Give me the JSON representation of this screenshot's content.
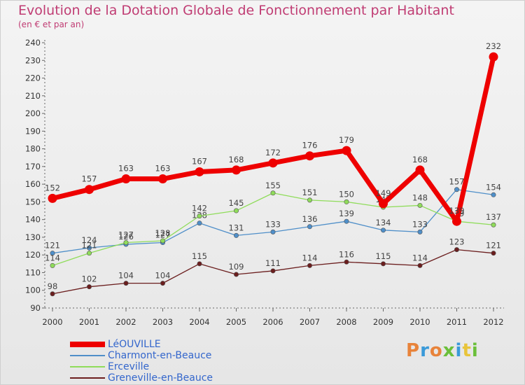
{
  "header": {
    "title": "Evolution de la Dotation Globale de Fonctionnement par Habitant",
    "subtitle": "(en € et par an)"
  },
  "logo": {
    "text": "Proxiti",
    "letters": [
      {
        "ch": "P",
        "color": "#e8833a"
      },
      {
        "ch": "r",
        "color": "#3a9ad9"
      },
      {
        "ch": "o",
        "color": "#e8833a"
      },
      {
        "ch": "x",
        "color": "#6bbf3a"
      },
      {
        "ch": "i",
        "color": "#3a9ad9"
      },
      {
        "ch": "t",
        "color": "#e8c43a"
      },
      {
        "ch": "i",
        "color": "#6bbf3a"
      }
    ]
  },
  "chart_data": {
    "type": "line",
    "title": "Evolution de la Dotation Globale de Fonctionnement par Habitant",
    "subtitle": "(en € et par an)",
    "x": [
      "2000",
      "2001",
      "2002",
      "2003",
      "2004",
      "2005",
      "2006",
      "2007",
      "2008",
      "2009",
      "2010",
      "2011",
      "2012"
    ],
    "ylim": [
      90,
      240
    ],
    "yticks": [
      90,
      100,
      110,
      120,
      130,
      140,
      150,
      160,
      170,
      180,
      190,
      200,
      210,
      220,
      230,
      240
    ],
    "grid": false,
    "legend_position": "bottom-left",
    "series": [
      {
        "name": "LéOUVILLE",
        "color": "#ee0000",
        "weight": "heavy",
        "values": [
          152,
          157,
          163,
          163,
          167,
          168,
          172,
          176,
          179,
          149,
          168,
          139,
          232
        ]
      },
      {
        "name": "Charmont-en-Beauce",
        "color": "#4f8fc9",
        "weight": "thin",
        "values": [
          121,
          124,
          126,
          127,
          138,
          131,
          133,
          136,
          139,
          134,
          133,
          157,
          154
        ]
      },
      {
        "name": "Erceville",
        "color": "#8fdc5a",
        "weight": "thin",
        "values": [
          114,
          121,
          127,
          128,
          142,
          145,
          155,
          151,
          150,
          147,
          148,
          139,
          137
        ]
      },
      {
        "name": "Greneville-en-Beauce",
        "color": "#6b1e1e",
        "weight": "thin",
        "values": [
          98,
          102,
          104,
          104,
          115,
          109,
          111,
          114,
          116,
          115,
          114,
          123,
          121
        ]
      }
    ]
  }
}
